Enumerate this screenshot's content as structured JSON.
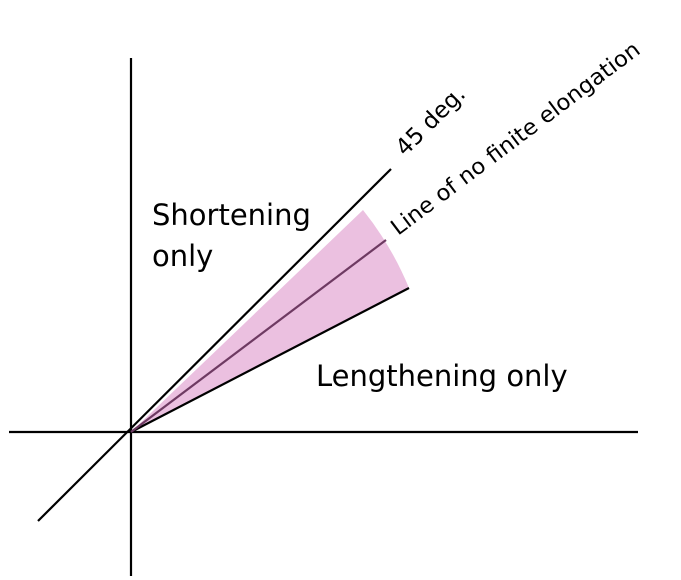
{
  "diagram": {
    "labels": {
      "shortening_line1": "Shortening",
      "shortening_line2": "only",
      "lengthening": "Lengthening only",
      "angle_45": "45 deg.",
      "no_elongation": "Line of no finite elongation"
    },
    "colors": {
      "axis": "#000000",
      "wedge_fill": "#ebc0e0",
      "no_elongation_line": "#6e3a62",
      "background": "#ffffff"
    }
  }
}
